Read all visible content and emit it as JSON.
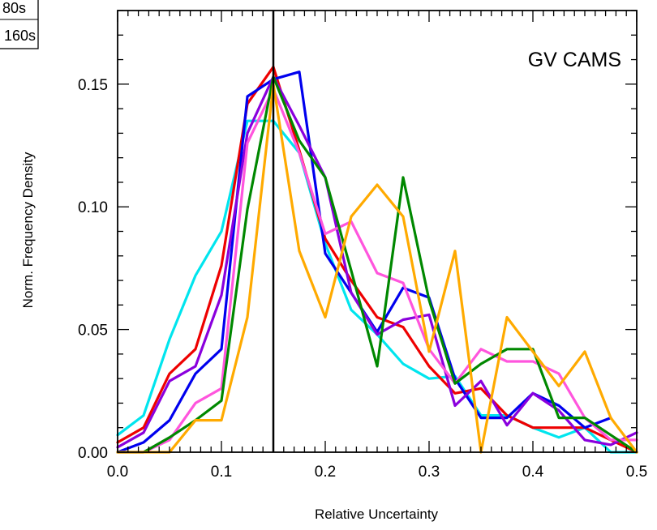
{
  "chart_data": {
    "type": "line",
    "title": "",
    "annotation": "GV CAMS",
    "xlabel": "Relative Uncertainty",
    "ylabel": "Norm. Frequency Density",
    "xlim": [
      0.0,
      0.5
    ],
    "ylim": [
      0.0,
      0.18
    ],
    "xticks": [
      "0.0",
      "0.1",
      "0.2",
      "0.3",
      "0.4",
      "0.5"
    ],
    "yticks": [
      "0.00",
      "0.05",
      "0.10",
      "0.15"
    ],
    "grid": false,
    "reference_line_x": 0.15,
    "legend_visible": [
      "80s",
      "160s"
    ],
    "legend_placement": "top-left, partially cropped",
    "series": [
      {
        "color": "#00e5ee",
        "x": [
          0.0,
          0.025,
          0.05,
          0.075,
          0.1,
          0.125,
          0.15,
          0.175,
          0.2,
          0.225,
          0.25,
          0.275,
          0.3,
          0.325,
          0.35,
          0.375,
          0.4,
          0.425,
          0.45,
          0.475,
          0.5
        ],
        "y": [
          0.007,
          0.015,
          0.046,
          0.072,
          0.09,
          0.135,
          0.135,
          0.122,
          0.085,
          0.058,
          0.048,
          0.036,
          0.03,
          0.031,
          0.015,
          0.015,
          0.01,
          0.006,
          0.01,
          0.0,
          0.0
        ]
      },
      {
        "color": "#ee0000",
        "x": [
          0.0,
          0.025,
          0.05,
          0.075,
          0.1,
          0.125,
          0.15,
          0.175,
          0.2,
          0.225,
          0.25,
          0.275,
          0.3,
          0.325,
          0.35,
          0.375,
          0.4,
          0.425,
          0.45,
          0.475,
          0.5
        ],
        "y": [
          0.004,
          0.01,
          0.032,
          0.042,
          0.076,
          0.142,
          0.157,
          0.123,
          0.087,
          0.07,
          0.055,
          0.051,
          0.035,
          0.024,
          0.026,
          0.015,
          0.01,
          0.01,
          0.01,
          0.005,
          0.0
        ]
      },
      {
        "color": "#0000ee",
        "x": [
          0.0,
          0.025,
          0.05,
          0.075,
          0.1,
          0.125,
          0.15,
          0.175,
          0.2,
          0.225,
          0.25,
          0.275,
          0.3,
          0.325,
          0.35,
          0.375,
          0.4,
          0.425,
          0.45,
          0.475
        ],
        "y": [
          0.0,
          0.004,
          0.013,
          0.032,
          0.042,
          0.145,
          0.152,
          0.155,
          0.081,
          0.065,
          0.049,
          0.067,
          0.063,
          0.03,
          0.014,
          0.014,
          0.024,
          0.019,
          0.01,
          0.014
        ]
      },
      {
        "color": "#8a00dd",
        "x": [
          0.0,
          0.025,
          0.05,
          0.075,
          0.1,
          0.125,
          0.15,
          0.175,
          0.2,
          0.225,
          0.25,
          0.275,
          0.3,
          0.325,
          0.35,
          0.375,
          0.4,
          0.425,
          0.45,
          0.475,
          0.5
        ],
        "y": [
          0.002,
          0.008,
          0.029,
          0.035,
          0.064,
          0.13,
          0.153,
          0.133,
          0.112,
          0.065,
          0.048,
          0.054,
          0.056,
          0.019,
          0.029,
          0.011,
          0.024,
          0.017,
          0.005,
          0.003,
          0.008
        ]
      },
      {
        "color": "#ff55dd",
        "x": [
          0.0,
          0.025,
          0.05,
          0.075,
          0.1,
          0.125,
          0.15,
          0.175,
          0.2,
          0.225,
          0.25,
          0.275,
          0.3,
          0.325,
          0.35,
          0.375,
          0.4,
          0.425,
          0.45,
          0.475,
          0.5
        ],
        "y": [
          0.0,
          0.0,
          0.005,
          0.02,
          0.026,
          0.126,
          0.148,
          0.122,
          0.089,
          0.094,
          0.073,
          0.069,
          0.042,
          0.028,
          0.042,
          0.037,
          0.037,
          0.032,
          0.014,
          0.005,
          0.005
        ]
      },
      {
        "color": "#008800",
        "x": [
          0.0,
          0.025,
          0.05,
          0.075,
          0.1,
          0.125,
          0.15,
          0.175,
          0.2,
          0.225,
          0.25,
          0.275,
          0.3,
          0.325,
          0.35,
          0.375,
          0.4,
          0.425,
          0.45,
          0.475,
          0.5
        ],
        "y": [
          0.0,
          0.0,
          0.006,
          0.013,
          0.021,
          0.099,
          0.153,
          0.127,
          0.112,
          0.074,
          0.035,
          0.112,
          0.062,
          0.028,
          0.036,
          0.042,
          0.042,
          0.014,
          0.014,
          0.007,
          0.0
        ]
      },
      {
        "color": "#ffaa00",
        "x": [
          0.0,
          0.025,
          0.05,
          0.075,
          0.1,
          0.125,
          0.15,
          0.175,
          0.2,
          0.225,
          0.25,
          0.275,
          0.3,
          0.325,
          0.35,
          0.375,
          0.4,
          0.425,
          0.45,
          0.475,
          0.5
        ],
        "y": [
          0.0,
          0.0,
          0.0,
          0.013,
          0.013,
          0.055,
          0.15,
          0.082,
          0.055,
          0.096,
          0.109,
          0.096,
          0.041,
          0.082,
          0.0,
          0.055,
          0.041,
          0.027,
          0.041,
          0.014,
          0.0
        ]
      }
    ]
  }
}
